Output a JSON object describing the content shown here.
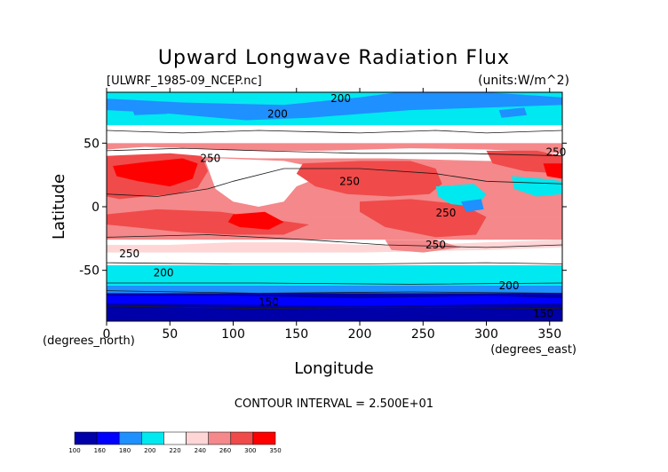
{
  "chart_data": {
    "type": "heatmap",
    "title": "Upward Longwave Radiation Flux",
    "file_label": "[ULWRF_1985-09_NCEP.nc]",
    "units_label": "(units:W/m^2)",
    "xlabel": "Longitude",
    "ylabel": "Latitude",
    "x_unit_label": "(degrees_east)",
    "y_unit_label": "(degrees_north)",
    "xlim": [
      0,
      360
    ],
    "ylim": [
      -90,
      90
    ],
    "x_ticks": [
      0,
      50,
      100,
      150,
      200,
      250,
      300,
      350
    ],
    "y_ticks": [
      -50,
      0,
      50
    ],
    "contour_interval_text": "CONTOUR INTERVAL = 2.500E+01",
    "contour_labels": [
      {
        "text": "200",
        "lon": 185,
        "lat": 85
      },
      {
        "text": "200",
        "lon": 135,
        "lat": 73
      },
      {
        "text": "250",
        "lon": 82,
        "lat": 38
      },
      {
        "text": "250",
        "lon": 355,
        "lat": 43
      },
      {
        "text": "250",
        "lon": 192,
        "lat": 20
      },
      {
        "text": "250",
        "lon": 268,
        "lat": -5
      },
      {
        "text": "250",
        "lon": 260,
        "lat": -30
      },
      {
        "text": "250",
        "lon": 18,
        "lat": -37
      },
      {
        "text": "200",
        "lon": 45,
        "lat": -52
      },
      {
        "text": "200",
        "lon": 318,
        "lat": -62
      },
      {
        "text": "150",
        "lon": 128,
        "lat": -75
      },
      {
        "text": "150",
        "lon": 345,
        "lat": -84
      }
    ],
    "colorbar": {
      "levels": [
        "100",
        "160",
        "180",
        "200",
        "220",
        "240",
        "260",
        "300",
        "350"
      ],
      "colors": [
        "#0000a8",
        "#0000ff",
        "#1e90ff",
        "#00e8f0",
        "#ffffff",
        "#ffd6d6",
        "#f4888a",
        "#f04a4a",
        "#ff0000"
      ]
    },
    "field_colors": {
      "c100": "#0000a8",
      "c160": "#0000ff",
      "c180": "#1e90ff",
      "c200": "#00e8f0",
      "c220": "#ffffff",
      "c240": "#ffd6d6",
      "c260": "#f4888a",
      "c300": "#f04a4a",
      "c350": "#ff0000"
    }
  }
}
